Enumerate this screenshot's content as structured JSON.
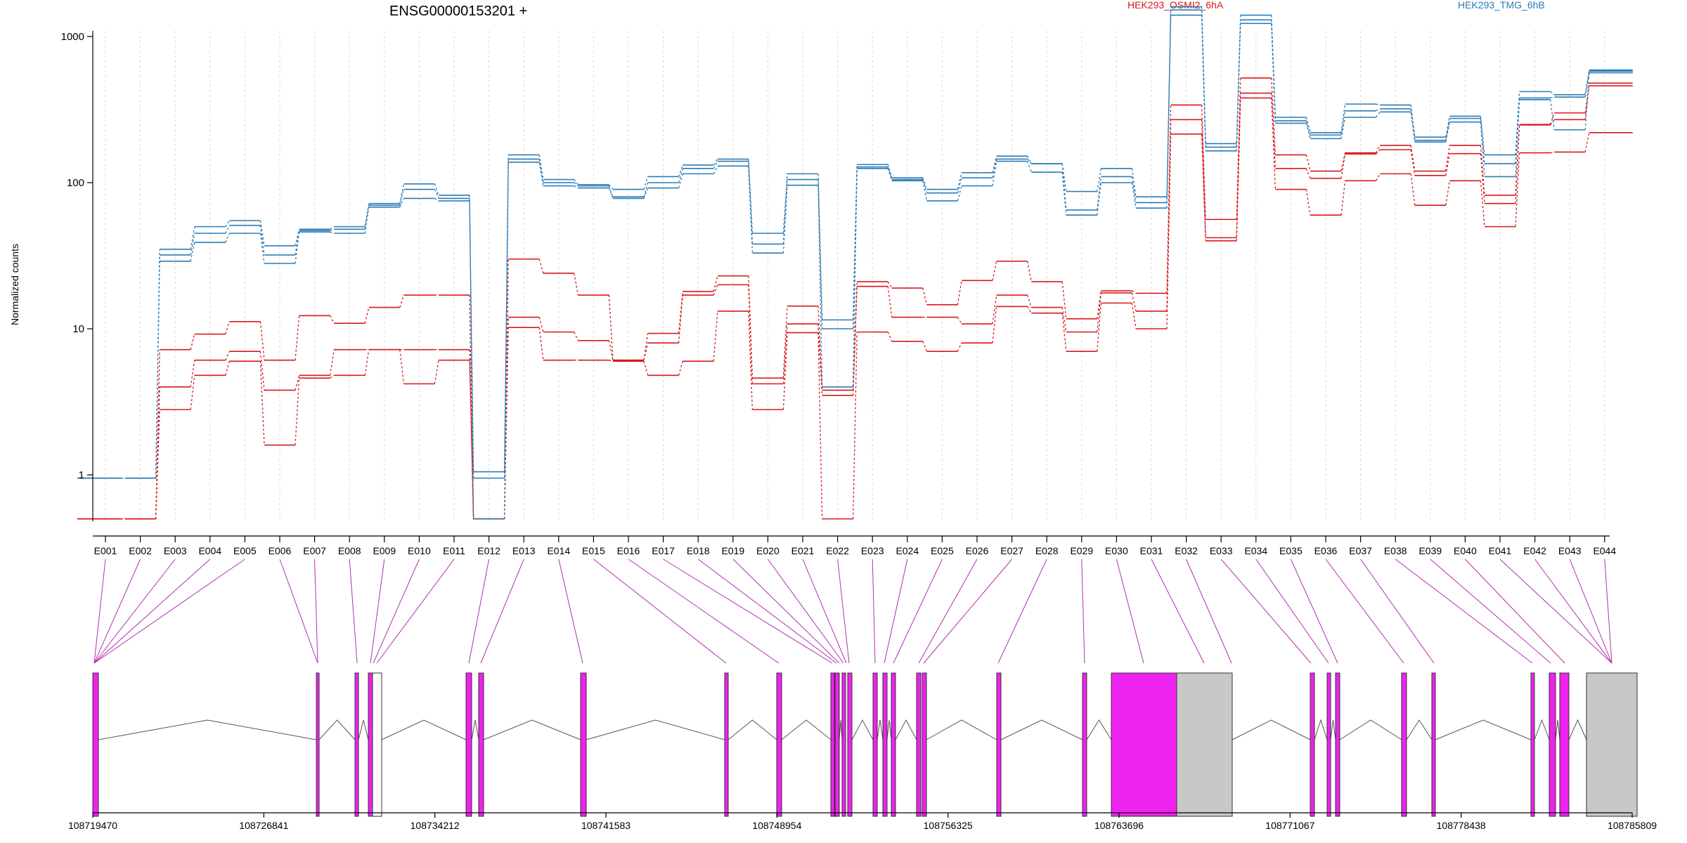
{
  "chart_data": {
    "type": "line",
    "title": "ENSG00000153201 +",
    "ylabel": "Normalized counts",
    "yscale": "log",
    "ylim": [
      0.5,
      2000
    ],
    "yticks": [
      "1",
      "10",
      "100",
      "1000"
    ],
    "grid": "vertical dotted lines at exon centers",
    "legend_placement": "top-right",
    "colors": {
      "OSMI2": "#d7191c",
      "TMG": "#2c7bb6",
      "exon": "#ee22ee",
      "exon_unused": "#c8c8c8",
      "connector": "#b030b0"
    },
    "exons": [
      "E001",
      "E002",
      "E003",
      "E004",
      "E005",
      "E006",
      "E007",
      "E008",
      "E009",
      "E010",
      "E011",
      "E012",
      "E013",
      "E014",
      "E015",
      "E016",
      "E017",
      "E018",
      "E019",
      "E020",
      "E021",
      "E022",
      "E023",
      "E024",
      "E025",
      "E026",
      "E027",
      "E028",
      "E029",
      "E030",
      "E031",
      "E032",
      "E033",
      "E034",
      "E035",
      "E036",
      "E037",
      "E038",
      "E039",
      "E040",
      "E041",
      "E042",
      "E043",
      "E044"
    ],
    "series": [
      {
        "name": "HEK293_OSMI2_6hA",
        "group": "OSMI2",
        "values": [
          0.5,
          0.5,
          7.2,
          9.2,
          11.2,
          6.1,
          12.3,
          10.9,
          14.0,
          17.0,
          17.0,
          0.5,
          30.0,
          24.0,
          17.0,
          6.1,
          9.3,
          18.0,
          23.0,
          4.6,
          14.3,
          3.8,
          21.0,
          19.0,
          14.6,
          21.4,
          29.0,
          21.0,
          11.7,
          18.2,
          17.5,
          340,
          56,
          520,
          155,
          120,
          160,
          180,
          120,
          180,
          82,
          250,
          300,
          480
        ]
      },
      {
        "name": "",
        "group": "OSMI2",
        "values": [
          0.5,
          0.5,
          4.0,
          6.1,
          7.0,
          3.8,
          4.8,
          7.2,
          7.2,
          7.2,
          7.2,
          0.5,
          12.0,
          9.5,
          8.3,
          6.1,
          8.0,
          17.0,
          20.0,
          4.2,
          10.8,
          3.5,
          19.5,
          12.0,
          12.0,
          10.8,
          17.0,
          14.0,
          9.5,
          17.6,
          13.2,
          270,
          42,
          410,
          125,
          107,
          157,
          168,
          112,
          158,
          72,
          248,
          270,
          460
        ]
      },
      {
        "name": "",
        "group": "OSMI2",
        "values": [
          0.5,
          0.5,
          2.8,
          4.8,
          6.0,
          1.6,
          4.6,
          4.8,
          7.2,
          4.2,
          6.1,
          0.5,
          10.2,
          6.1,
          6.1,
          6.0,
          4.8,
          6.0,
          13.2,
          2.8,
          9.4,
          0.5,
          9.5,
          8.2,
          7.0,
          8.0,
          14.2,
          12.8,
          7.0,
          15.0,
          10.0,
          215,
          40,
          380,
          90,
          60,
          103,
          115,
          70,
          103,
          50,
          160,
          162,
          220
        ]
      },
      {
        "name": "HEK293_TMG_6hB",
        "group": "TMG",
        "values": [
          0.95,
          0.95,
          35,
          50,
          55,
          37,
          48,
          50,
          72,
          98,
          82,
          1.05,
          155,
          105,
          97,
          90,
          110,
          132,
          145,
          45,
          115,
          11.5,
          133,
          108,
          90,
          117,
          152,
          135,
          87,
          125,
          80,
          1600,
          185,
          1400,
          280,
          220,
          345,
          340,
          205,
          285,
          155,
          420,
          400,
          590
        ]
      },
      {
        "name": "",
        "group": "TMG",
        "values": [
          0.95,
          0.95,
          32,
          45,
          51,
          32,
          47,
          48,
          70,
          90,
          78,
          0.95,
          145,
          100,
          95,
          80,
          100,
          125,
          140,
          38,
          105,
          10.0,
          128,
          105,
          85,
          108,
          145,
          135,
          65,
          110,
          73,
          1520,
          175,
          1300,
          265,
          212,
          310,
          320,
          195,
          275,
          135,
          380,
          385,
          580
        ]
      },
      {
        "name": "",
        "group": "TMG",
        "values": [
          0.95,
          0.95,
          29,
          39,
          45,
          28,
          46,
          45,
          68,
          78,
          75,
          0.5,
          138,
          95,
          92,
          78,
          92,
          115,
          130,
          33,
          96,
          4.0,
          125,
          103,
          75,
          95,
          140,
          118,
          60,
          100,
          67,
          1400,
          165,
          1230,
          255,
          200,
          280,
          305,
          190,
          260,
          110,
          370,
          230,
          565
        ]
      }
    ],
    "genomic_axis": {
      "tick_labels": [
        "108719470",
        "108726841",
        "108734212",
        "108741583",
        "108748954",
        "108756325",
        "108763696",
        "108771067",
        "108778438",
        "108785809"
      ],
      "range": [
        108719470,
        108785809
      ]
    }
  }
}
